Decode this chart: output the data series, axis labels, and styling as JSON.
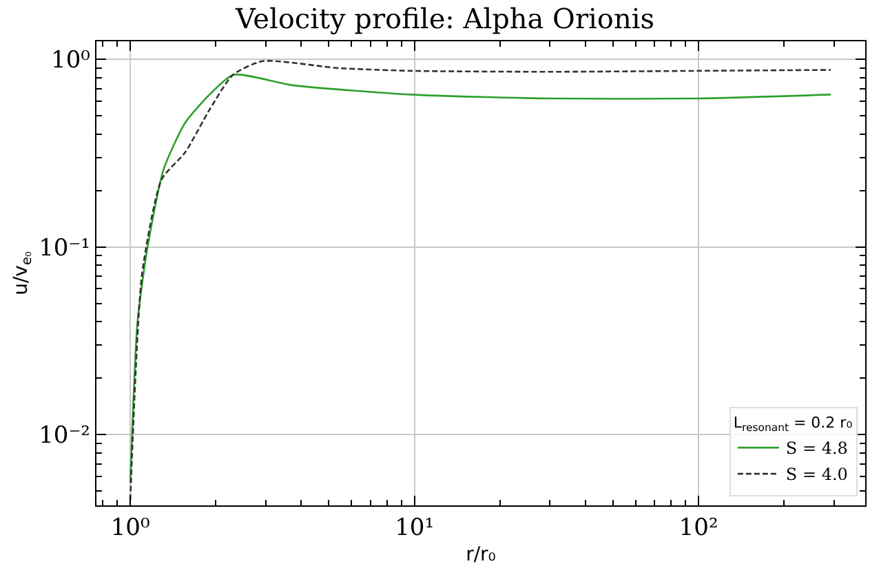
{
  "chart_data": {
    "type": "line",
    "title": "Velocity profile: Alpha Orionis",
    "xlabel": "r/r₀",
    "ylabel": "u/v$_{e₀}$",
    "legend_title": "L$_{resonant}$ = 0.2 r₀",
    "log": "xy",
    "grid": true,
    "legend": "bottom right",
    "xlim": [
      0.76,
      386
    ],
    "ylim": [
      0.0042,
      1.25
    ],
    "xticks": [
      {
        "value": 1,
        "label": "10⁰"
      },
      {
        "value": 10,
        "label": "10¹"
      },
      {
        "value": 100,
        "label": "10²"
      }
    ],
    "yticks": [
      {
        "value": 0.01,
        "label": "10⁻²"
      },
      {
        "value": 0.1,
        "label": "10⁻¹"
      },
      {
        "value": 1,
        "label": "10⁰"
      }
    ],
    "series": [
      {
        "name": "S = 4.8",
        "color": "#2ca02c",
        "line_style": "solid",
        "x": [
          1.0,
          1.06,
          1.15,
          1.31,
          1.56,
          1.9,
          2.31,
          3.7,
          9.7,
          30,
          100,
          292
        ],
        "values": [
          0.0056,
          0.04,
          0.1,
          0.26,
          0.46,
          0.65,
          0.83,
          0.73,
          0.65,
          0.62,
          0.62,
          0.65
        ]
      },
      {
        "name": "S = 4.0",
        "color": "#333333",
        "line_style": "dashed",
        "x": [
          1.0,
          1.1,
          1.29,
          1.56,
          1.9,
          2.3,
          2.92,
          5.4,
          9.7,
          30,
          100,
          292
        ],
        "values": [
          0.0045,
          0.072,
          0.23,
          0.32,
          0.54,
          0.83,
          0.98,
          0.9,
          0.87,
          0.86,
          0.87,
          0.88
        ]
      }
    ]
  }
}
